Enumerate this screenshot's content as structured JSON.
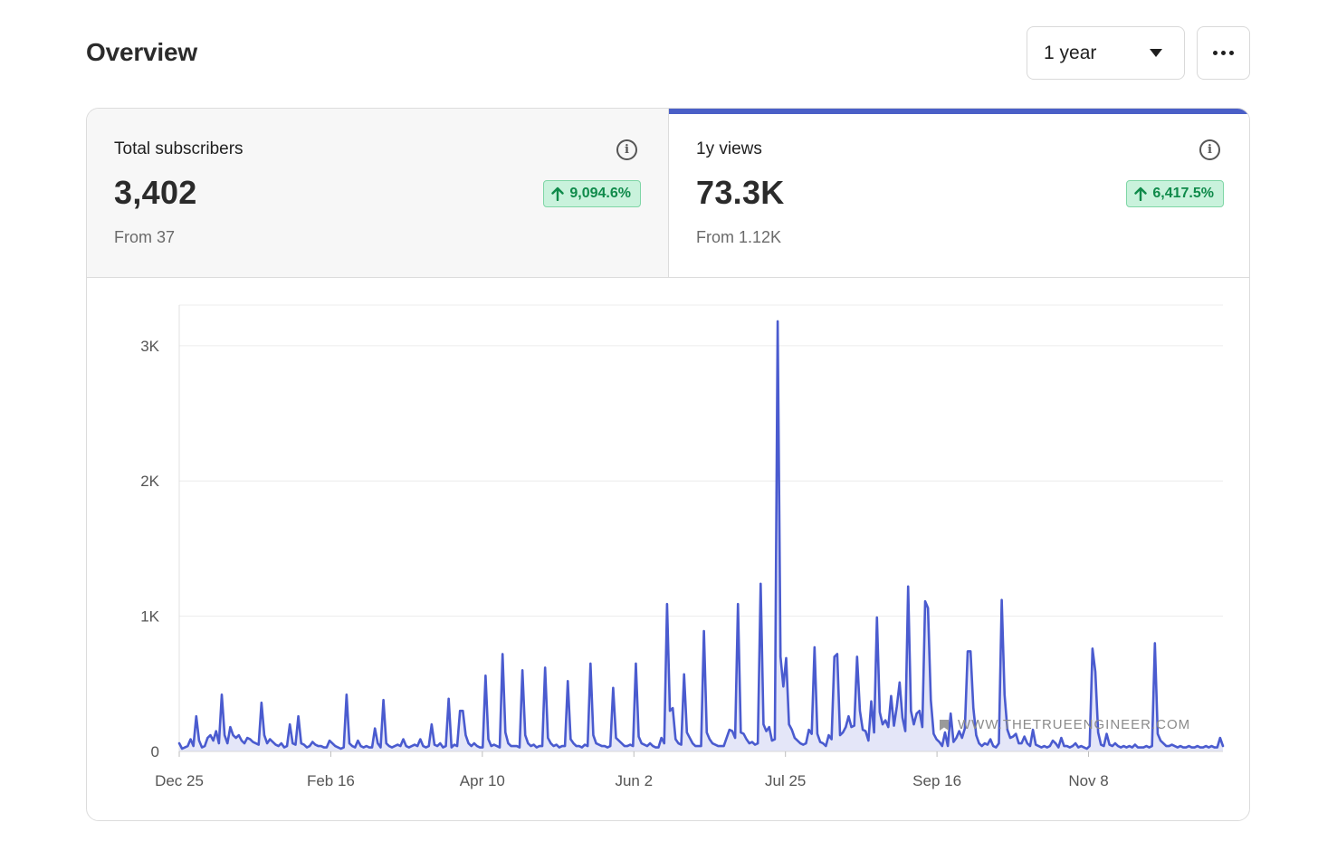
{
  "header": {
    "title": "Overview",
    "period_label": "1 year"
  },
  "tabs": [
    {
      "label": "Total subscribers",
      "value": "3,402",
      "change": "9,094.6%",
      "from": "From 37",
      "active": false
    },
    {
      "label": "1y views",
      "value": "73.3K",
      "change": "6,417.5%",
      "from": "From 1.12K",
      "active": true
    }
  ],
  "colors": {
    "accent": "#4a5fc7",
    "line": "#4a5bcf",
    "fill": "#e1e3f7",
    "badge_bg": "#c9f2dc",
    "badge_text": "#0f8a4a"
  },
  "watermark": "WWW.THETRUEENGINEER.COM",
  "chart_data": {
    "type": "area",
    "ylim": [
      0,
      3300
    ],
    "yticks": [
      0,
      1000,
      2000,
      3000
    ],
    "ytick_labels": [
      "0",
      "1K",
      "2K",
      "3K"
    ],
    "xtick_labels": [
      "Dec 25",
      "Feb 16",
      "Apr 10",
      "Jun 2",
      "Jul 25",
      "Sep 16",
      "Nov 8"
    ],
    "xtick_days": [
      0,
      53,
      106,
      159,
      212,
      265,
      318
    ],
    "x_days_total": 365,
    "grid": true,
    "series": [
      {
        "values": [
          60,
          20,
          30,
          40,
          90,
          40,
          260,
          80,
          30,
          40,
          100,
          120,
          80,
          150,
          60,
          420,
          120,
          60,
          180,
          120,
          100,
          120,
          80,
          60,
          100,
          90,
          70,
          60,
          50,
          360,
          120,
          60,
          90,
          70,
          50,
          40,
          60,
          30,
          40,
          200,
          60,
          50,
          260,
          60,
          50,
          30,
          40,
          70,
          50,
          40,
          40,
          30,
          30,
          80,
          60,
          40,
          30,
          20,
          30,
          420,
          60,
          40,
          30,
          80,
          40,
          30,
          40,
          30,
          30,
          170,
          60,
          30,
          380,
          60,
          40,
          30,
          40,
          50,
          40,
          90,
          40,
          30,
          40,
          50,
          40,
          90,
          40,
          30,
          40,
          200,
          50,
          40,
          60,
          30,
          40,
          390,
          30,
          50,
          40,
          300,
          300,
          120,
          60,
          40,
          60,
          40,
          30,
          30,
          560,
          90,
          40,
          50,
          40,
          30,
          720,
          140,
          60,
          40,
          40,
          40,
          30,
          600,
          120,
          60,
          40,
          50,
          30,
          40,
          40,
          620,
          100,
          60,
          40,
          50,
          30,
          40,
          40,
          520,
          90,
          60,
          40,
          40,
          30,
          50,
          40,
          650,
          120,
          60,
          50,
          40,
          40,
          30,
          40,
          470,
          100,
          80,
          60,
          40,
          40,
          50,
          40,
          650,
          110,
          60,
          50,
          40,
          60,
          40,
          30,
          30,
          100,
          60,
          1090,
          300,
          320,
          90,
          60,
          50,
          570,
          140,
          100,
          60,
          40,
          40,
          40,
          890,
          140,
          90,
          60,
          50,
          40,
          40,
          40,
          100,
          160,
          150,
          100,
          1090,
          140,
          130,
          90,
          60,
          70,
          50,
          60,
          1240,
          200,
          150,
          180,
          80,
          90,
          3180,
          700,
          480,
          690,
          200,
          160,
          100,
          80,
          60,
          50,
          60,
          160,
          130,
          770,
          130,
          70,
          60,
          40,
          120,
          90,
          700,
          720,
          120,
          140,
          180,
          260,
          180,
          190,
          700,
          300,
          160,
          150,
          80,
          370,
          140,
          990,
          290,
          200,
          230,
          180,
          410,
          190,
          330,
          510,
          250,
          150,
          1220,
          300,
          200,
          280,
          300,
          180,
          1110,
          1060,
          380,
          130,
          90,
          70,
          40,
          140,
          40,
          280,
          70,
          100,
          150,
          100,
          170,
          740,
          740,
          320,
          120,
          60,
          40,
          60,
          50,
          90,
          40,
          30,
          60,
          1120,
          420,
          160,
          100,
          110,
          130,
          60,
          60,
          110,
          60,
          40,
          160,
          50,
          40,
          30,
          40,
          30,
          40,
          80,
          60,
          30,
          100,
          40,
          40,
          30,
          40,
          60,
          30,
          40,
          30,
          20,
          40,
          760,
          590,
          140,
          50,
          40,
          130,
          50,
          40,
          60,
          40,
          30,
          40,
          30,
          40,
          30,
          50,
          30,
          30,
          30,
          40,
          30,
          40,
          800,
          130,
          80,
          60,
          40,
          40,
          50,
          40,
          30,
          40,
          30,
          30,
          40,
          30,
          30,
          40,
          30,
          30,
          40,
          30,
          40,
          30,
          30,
          100,
          40
        ]
      }
    ]
  }
}
